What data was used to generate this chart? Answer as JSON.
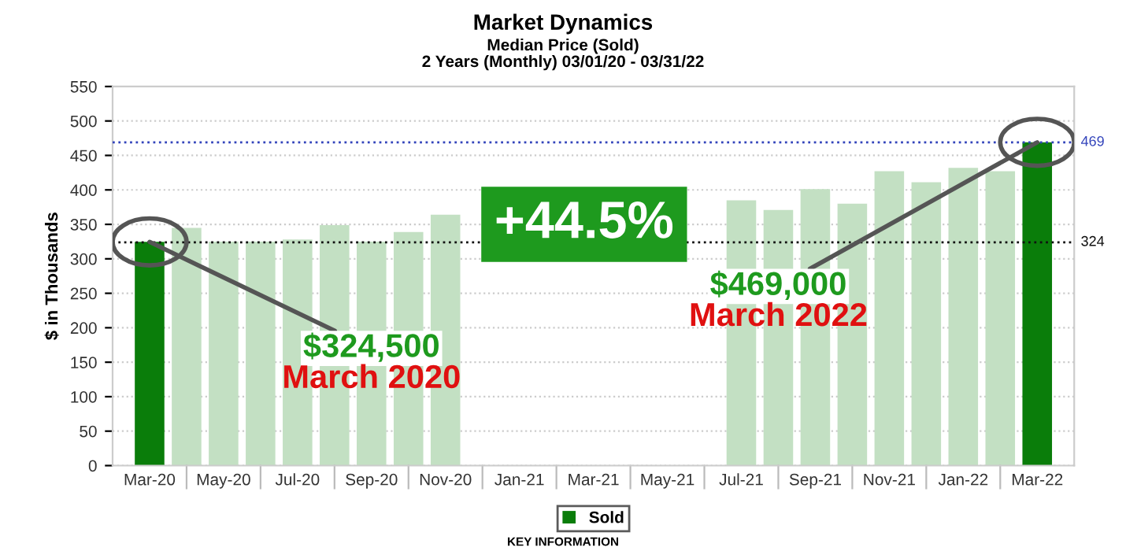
{
  "chart_data": {
    "type": "bar",
    "title": "Market Dynamics",
    "subtitle": "Median Price (Sold)\n2 Years (Monthly) 03/01/20 - 03/31/22",
    "ylabel": "$ in Thousands",
    "categories": [
      "Mar-20",
      null,
      "May-20",
      null,
      "Jul-20",
      null,
      "Sep-20",
      null,
      "Nov-20",
      null,
      "Jan-21",
      null,
      "Mar-21",
      null,
      "May-21",
      null,
      "Jul-21",
      null,
      "Sep-21",
      null,
      "Nov-21",
      null,
      "Jan-22",
      null,
      "Mar-22"
    ],
    "series": [
      {
        "name": "Sold",
        "color": "#0a7d0a",
        "colors": [
          "#0a7d0a",
          "#c3e0c3",
          "#c3e0c3",
          "#c3e0c3",
          "#c3e0c3",
          "#c3e0c3",
          "#c3e0c3",
          "#c3e0c3",
          "#c3e0c3",
          "#c3e0c3",
          "#c3e0c3",
          "#c3e0c3",
          "#c3e0c3",
          "#c3e0c3",
          "#c3e0c3",
          "#c3e0c3",
          "#c3e0c3",
          "#c3e0c3",
          "#c3e0c3",
          "#c3e0c3",
          "#c3e0c3",
          "#c3e0c3",
          "#c3e0c3",
          "#c3e0c3",
          "#0a7d0a"
        ],
        "values": [
          324.5,
          345,
          325,
          325,
          328,
          349,
          325,
          339,
          364,
          null,
          null,
          null,
          null,
          null,
          null,
          null,
          385,
          371,
          401,
          380,
          427,
          411,
          432,
          427,
          469
        ]
      }
    ],
    "ylim": [
      0,
      550
    ],
    "yticks": [
      0,
      50,
      100,
      150,
      200,
      250,
      300,
      350,
      400,
      450,
      500,
      550
    ],
    "grid": "y",
    "legend": "bottom",
    "ref_lines": [
      {
        "axis": "y",
        "value": 469,
        "label": "469",
        "color": "#3344bb",
        "line_style": "dotted"
      },
      {
        "axis": "y",
        "value": 324,
        "label": "324",
        "color": "#111111",
        "line_style": "dotted"
      }
    ],
    "annotations": [
      "+44.5%",
      "KEY INFORMATION",
      {
        "text": "$324,500",
        "x": "Mar-20",
        "y": 324.5
      },
      "March 2020",
      {
        "text": "$469,000",
        "x": "Mar-22",
        "y": 469
      },
      "March 2022"
    ]
  }
}
